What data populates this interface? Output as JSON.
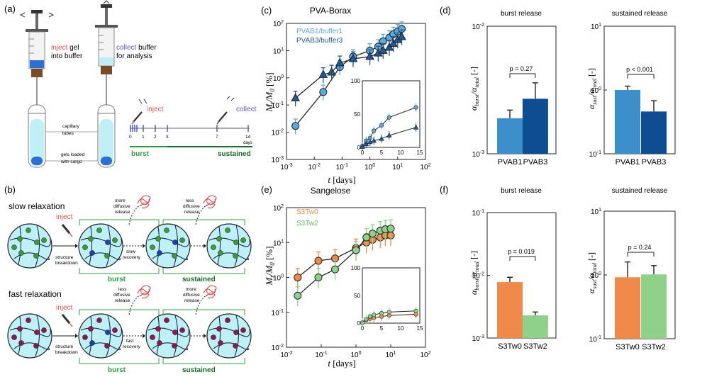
{
  "panels": {
    "a": {
      "label": "(a)",
      "inject_word": "inject",
      "inject_rest": " gel",
      "inject_line2": "into buffer",
      "collect_word": "collect",
      "collect_rest": " buffer",
      "collect_line2": "for analysis",
      "capillary_label": "capillary tubes",
      "capillary_l1": "capillary",
      "capillary_l2": "tubes",
      "gels_l1": "gels loaded",
      "gels_l2": "with cargo",
      "timeline_inject": "inject",
      "timeline_collect": "collect",
      "ticks": [
        "0",
        "1",
        "2",
        "3",
        "7",
        "14"
      ],
      "days": "days",
      "burst": "burst",
      "sustained": "sustained"
    },
    "b": {
      "label": "(b)",
      "slow_title": "slow relaxation",
      "fast_title": "fast relaxation",
      "inject": "inject",
      "structure_l1": "structure",
      "structure_l2": "breakdown",
      "slow_recovery_l1": "slow",
      "slow_recovery_l2": "recovery",
      "fast_recovery_l1": "fast",
      "fast_recovery_l2": "recovery",
      "more_l1": "more",
      "more_l2": "diffusive",
      "more_l3": "release",
      "less_l1": "less",
      "less_l2": "diffusive",
      "less_l3": "release",
      "burst": "burst",
      "sustained": "sustained"
    },
    "c": {
      "label": "(c)",
      "title": "PVA-Borax",
      "legend": [
        "PVAB1/buffer1",
        "PVAB3/buffer3"
      ],
      "ylabel": "Mt/M0 [%]",
      "xlabel": "t [days]"
    },
    "d": {
      "label": "(d)",
      "left_title": "burst release",
      "right_title": "sustained release",
      "left_p": "p = 0.27",
      "right_p": "p < 0.001"
    },
    "e": {
      "label": "(e)",
      "title": "Sangelose",
      "legend": [
        "S3Tw0",
        "S3Tw2"
      ]
    },
    "f": {
      "label": "(f)",
      "left_title": "burst release",
      "right_title": "sustained release",
      "left_p": "p = 0.019",
      "right_p": "p = 0.24"
    }
  },
  "colors": {
    "pvab1": "#5da9dd",
    "pvab3": "#1e5a99",
    "pvab1_bar": "#3d8fcb",
    "pvab3_bar": "#0e4d92",
    "s3tw0": "#f08a4b",
    "s3tw2": "#8fd18a",
    "burst": "#2ea043",
    "sustained": "#1b6b2a",
    "inject": "#e0524a",
    "collect": "#5b57c8",
    "gel": "#bff0f7"
  },
  "chart_data": [
    {
      "id": "c-main",
      "type": "scatter",
      "title": "PVA-Borax",
      "xscale": "log",
      "yscale": "log",
      "xlim": [
        0.001,
        100
      ],
      "ylim": [
        0.001,
        100
      ],
      "xticks": [
        "10^-3",
        "10^-2",
        "10^-1",
        "10^0",
        "10^1",
        "10^2"
      ],
      "yticks": [
        "10^-3",
        "10^-2",
        "10^-1",
        "10^0",
        "10^1",
        "10^2"
      ],
      "series": [
        {
          "name": "PVAB1/buffer1",
          "x": [
            0.0021,
            0.021,
            0.083,
            0.25,
            1,
            2,
            3,
            5,
            7,
            10,
            14
          ],
          "y": [
            0.017,
            0.3,
            2.5,
            6,
            10,
            14,
            22,
            30,
            40,
            50,
            63
          ]
        },
        {
          "name": "PVAB3/buffer3",
          "x": [
            0.0021,
            0.021,
            0.042,
            0.083,
            0.25,
            1,
            2,
            3,
            5,
            7,
            10,
            14
          ],
          "y": [
            0.18,
            1.3,
            1.6,
            3.5,
            5,
            6,
            8,
            10,
            13,
            18,
            25,
            32
          ]
        }
      ]
    },
    {
      "id": "c-inset",
      "type": "scatter",
      "xlim": [
        0,
        15
      ],
      "ylim": [
        0,
        100
      ],
      "xticks": [
        "0",
        "5",
        "10",
        "15"
      ],
      "yticks": [
        "0",
        "50",
        "100"
      ],
      "series": [
        {
          "name": "PVAB1/buffer1",
          "x": [
            0,
            1,
            2,
            3,
            5,
            7,
            14
          ],
          "y": [
            2,
            10,
            14,
            25,
            33,
            45,
            60
          ]
        },
        {
          "name": "PVAB3/buffer3",
          "x": [
            0,
            1,
            2,
            3,
            5,
            7,
            14
          ],
          "y": [
            1,
            5,
            8,
            10,
            13,
            18,
            30
          ]
        }
      ]
    },
    {
      "id": "e-main",
      "type": "scatter",
      "title": "Sangelose",
      "xscale": "log",
      "yscale": "log",
      "xlim": [
        0.01,
        100
      ],
      "ylim": [
        0.01,
        100
      ],
      "xticks": [
        "10^-2",
        "10^-1",
        "10^0",
        "10^1",
        "10^2"
      ],
      "yticks": [
        "10^-2",
        "10^-1",
        "10^0",
        "10^1",
        "10^2"
      ],
      "series": [
        {
          "name": "S3Tw0",
          "x": [
            0.021,
            0.083,
            0.25,
            1,
            2,
            3,
            5,
            7,
            10
          ],
          "y": [
            1,
            3,
            3.5,
            7,
            10,
            12,
            14,
            16,
            16
          ]
        },
        {
          "name": "S3Tw2",
          "x": [
            0.021,
            0.083,
            0.25,
            1,
            2,
            3,
            5,
            7,
            10
          ],
          "y": [
            0.3,
            1,
            1.7,
            6,
            14,
            18,
            22,
            24,
            25
          ]
        }
      ]
    },
    {
      "id": "e-inset",
      "type": "scatter",
      "xlim": [
        0,
        15
      ],
      "ylim": [
        0,
        100
      ],
      "xticks": [
        "0",
        "5",
        "10",
        "15"
      ],
      "yticks": [
        "0",
        "50",
        "100"
      ],
      "series": [
        {
          "name": "S3Tw0",
          "x": [
            0,
            1,
            2,
            3,
            5,
            7,
            14
          ],
          "y": [
            1,
            6,
            8,
            10,
            12,
            14,
            16
          ]
        },
        {
          "name": "S3Tw2",
          "x": [
            0,
            1,
            2,
            3,
            5,
            7,
            14
          ],
          "y": [
            0.5,
            7,
            12,
            15,
            18,
            20,
            22
          ]
        }
      ]
    },
    {
      "id": "d-burst",
      "type": "bar",
      "title": "burst release",
      "yscale": "log",
      "ylim": [
        0.001,
        0.01
      ],
      "yticks": [
        "10^-3",
        "10^-2"
      ],
      "ylabel": "alpha_burst/alpha_total [-]",
      "categories": [
        "PVAB1",
        "PVAB3"
      ],
      "values": [
        0.0019,
        0.0027
      ],
      "err_hi": [
        0.0022,
        0.0036
      ]
    },
    {
      "id": "d-sust",
      "type": "bar",
      "title": "sustained release",
      "yscale": "log",
      "ylim": [
        0.1,
        10
      ],
      "yticks": [
        "10^-1",
        "10^0",
        "10^1"
      ],
      "ylabel": "alpha_sust/alpha_total [-]",
      "categories": [
        "PVAB1",
        "PVAB3"
      ],
      "values": [
        1.0,
        0.46
      ],
      "err_hi": [
        1.15,
        0.68
      ]
    },
    {
      "id": "f-burst",
      "type": "bar",
      "title": "burst release",
      "yscale": "log",
      "ylim": [
        0.001,
        0.1
      ],
      "yticks": [
        "10^-3",
        "10^-2",
        "10^-1"
      ],
      "ylabel": "alpha_burst/alpha_total [-]",
      "categories": [
        "S3Tw0",
        "S3Tw2"
      ],
      "values": [
        0.0078,
        0.0023
      ],
      "err_hi": [
        0.0093,
        0.0026
      ]
    },
    {
      "id": "f-sust",
      "type": "bar",
      "title": "sustained release",
      "yscale": "log",
      "ylim": [
        0.1,
        10
      ],
      "yticks": [
        "10^-1",
        "10^0",
        "10^1"
      ],
      "ylabel": "alpha_sust/alpha_total [-]",
      "categories": [
        "S3Tw0",
        "S3Tw2"
      ],
      "values": [
        0.92,
        1.02
      ],
      "err_hi": [
        1.6,
        1.4
      ]
    }
  ]
}
